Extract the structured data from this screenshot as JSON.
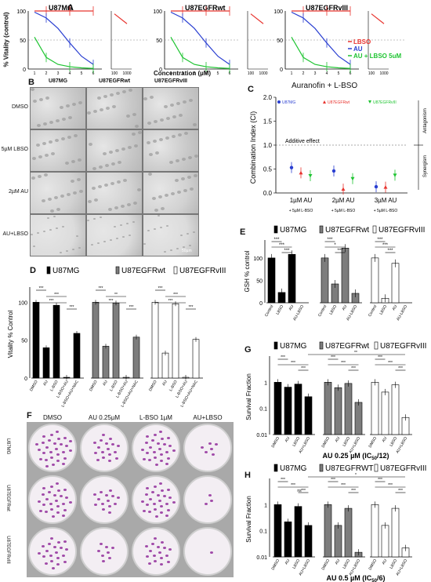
{
  "panels": {
    "A": {
      "label": "A",
      "ylabel": "% Vitality (control)",
      "xlabel": "Concentration (µM)",
      "titles": [
        "U87MG",
        "U87EGFRwt",
        "U87EGFRvIII"
      ],
      "legend": [
        "LBSO",
        "AU",
        "AU + LBSO 5uM"
      ],
      "yticks": [
        "100",
        "50",
        "0"
      ],
      "xticks_left": [
        "1",
        "2",
        "3",
        "4",
        "5",
        "6"
      ],
      "xticks_right": [
        "100",
        "1000"
      ],
      "colors": {
        "LBSO": "#e8342f",
        "AU": "#2a3fd1",
        "AU_LBSO": "#1ec431",
        "ref": "#888888"
      }
    },
    "B": {
      "label": "B",
      "columns": [
        "U87MG",
        "U87EGFRwt",
        "U87EGFRvIII"
      ],
      "rows": [
        "DMSO",
        "5µM LBSO",
        "2µM AU",
        "AU+LBSO"
      ],
      "scale": "50µm"
    },
    "C": {
      "label": "C",
      "title": "Auranofin + L-BSO",
      "ylabel": "Combination Index (CI)",
      "yticks": [
        "2.0",
        "1.5",
        "1.0",
        "0.5",
        "0.0"
      ],
      "legend": [
        "U87MG",
        "U87EGFRwt",
        "U87EGFRvIII"
      ],
      "additive": "Additive effect",
      "antagonism": "Antagonism",
      "synergism": "Synergism",
      "groups": [
        "1µM AU",
        "2µM AU",
        "3µM AU"
      ],
      "sublabels": [
        "+ 5µM L-BSO",
        "+ 5µM L-BSO",
        "+ 5µM L-BSO"
      ]
    },
    "D": {
      "label": "D",
      "ylabel": "Vitality % Control",
      "yticks": [
        "100",
        "50",
        "0"
      ],
      "legend": [
        "U87MG",
        "U87EGFRwt",
        "U87EGFRvIII"
      ],
      "categories": [
        "DMSO",
        "AU",
        "L-BSO",
        "L-BSO+AU",
        "L-BSO+AU+NAC"
      ],
      "sig": "***",
      "sig2": "**"
    },
    "E": {
      "label": "E",
      "ylabel": "GSH % control",
      "yticks": [
        "100",
        "50",
        "0"
      ],
      "legend": [
        "U87MG",
        "U87EGFRwt",
        "U87EGFRvIII"
      ],
      "categories": [
        "Control",
        "LBSO",
        "AU",
        "AU-LBSO"
      ],
      "sig": "***",
      "sig1": "*"
    },
    "F": {
      "label": "F",
      "columns": [
        "DMSO",
        "AU 0.25µM",
        "L-BSO 1µM",
        "AU+LBSO"
      ],
      "rows": [
        "U87MG",
        "U87EGFRwt",
        "U87EGFRvIII"
      ]
    },
    "G": {
      "label": "G",
      "ylabel": "Survival Fraction",
      "yticks": [
        "1",
        "0.1",
        "0.01"
      ],
      "legend": [
        "U87MG",
        "U87EGFRwt",
        "U87EGFRvIII"
      ],
      "categories": [
        "DMSO",
        "AU",
        "LBSO",
        "AU+LBSO"
      ],
      "caption": "AU 0.25 µM (IC",
      "caption_sub": "50",
      "caption_end": "/12)",
      "sig": "***",
      "sig2": "**"
    },
    "H": {
      "label": "H",
      "ylabel": "Survival Fraction",
      "yticks": [
        "1",
        "0.1",
        "0.01"
      ],
      "legend": [
        "U87MG",
        "U87EGFRWT",
        "U87EGFRvIII"
      ],
      "categories": [
        "DMSO",
        "AU",
        "LBSO",
        "AU+LBSO"
      ],
      "caption": "AU 0.5 µM (IC",
      "caption_sub": "50",
      "caption_end": "/6)",
      "sig": "***",
      "sig1": "*",
      "ns": "ns"
    }
  },
  "chart_data": [
    {
      "panel": "A",
      "type": "line",
      "subplots": [
        "U87MG",
        "U87EGFRwt",
        "U87EGFRvIII"
      ],
      "series": [
        {
          "name": "LBSO",
          "x": [
            1,
            2,
            3,
            4,
            5,
            6,
            100,
            1000
          ],
          "y": [
            100,
            100,
            100,
            100,
            100,
            100,
            95,
            78
          ]
        },
        {
          "name": "AU",
          "x": [
            1,
            2,
            3,
            4,
            5,
            6
          ],
          "y": [
            98,
            88,
            70,
            45,
            22,
            8
          ]
        },
        {
          "name": "AU + LBSO 5uM",
          "x": [
            1,
            2,
            3,
            4,
            5,
            6
          ],
          "y": [
            55,
            20,
            8,
            4,
            2,
            1
          ]
        }
      ],
      "ylim": [
        0,
        100
      ]
    },
    {
      "panel": "C",
      "type": "scatter",
      "groups": [
        "1µM AU",
        "2µM AU",
        "3µM AU"
      ],
      "series": [
        {
          "name": "U87MG",
          "values": [
            0.53,
            0.46,
            0.13
          ]
        },
        {
          "name": "U87EGFRwt",
          "values": [
            0.42,
            0.08,
            0.12
          ]
        },
        {
          "name": "U87EGFRvIII",
          "values": [
            0.36,
            0.3,
            0.37
          ]
        }
      ],
      "ylim": [
        0,
        2
      ]
    },
    {
      "panel": "D",
      "type": "bar",
      "categories": [
        "DMSO",
        "AU",
        "L-BSO",
        "L-BSO+AU",
        "L-BSO+AU+NAC"
      ],
      "series": [
        {
          "name": "U87MG",
          "values": [
            100,
            40,
            96,
            1,
            59
          ]
        },
        {
          "name": "U87EGFRwt",
          "values": [
            100,
            42,
            99,
            1,
            54
          ]
        },
        {
          "name": "U87EGFRvIII",
          "values": [
            100,
            33,
            98,
            1,
            51
          ]
        }
      ],
      "ylim": [
        0,
        120
      ]
    },
    {
      "panel": "E",
      "type": "bar",
      "categories": [
        "Control",
        "LBSO",
        "AU",
        "AU-LBSO"
      ],
      "series": [
        {
          "name": "U87MG",
          "values": [
            100,
            23,
            108,
            0
          ]
        },
        {
          "name": "U87EGFRwt",
          "values": [
            100,
            42,
            122,
            21
          ]
        },
        {
          "name": "U87EGFRvIII",
          "values": [
            100,
            10,
            88,
            0
          ]
        }
      ],
      "ylim": [
        0,
        140
      ]
    },
    {
      "panel": "G",
      "type": "bar",
      "categories": [
        "DMSO",
        "AU",
        "LBSO",
        "AU+LBSO"
      ],
      "series": [
        {
          "name": "U87MG",
          "values": [
            1,
            0.65,
            0.85,
            0.28
          ]
        },
        {
          "name": "U87EGFRwt",
          "values": [
            1,
            0.62,
            0.9,
            0.17
          ]
        },
        {
          "name": "U87EGFRvIII",
          "values": [
            1,
            0.42,
            0.8,
            0.045
          ]
        }
      ],
      "ylim": [
        0.01,
        10
      ],
      "scale": "log"
    },
    {
      "panel": "H",
      "type": "bar",
      "categories": [
        "DMSO",
        "AU",
        "LBSO",
        "AU+LBSO"
      ],
      "series": [
        {
          "name": "U87MG",
          "values": [
            1,
            0.22,
            0.85,
            0.16
          ]
        },
        {
          "name": "U87EGFRwt",
          "values": [
            1,
            0.16,
            0.72,
            0.015
          ]
        },
        {
          "name": "U87EGFRvIII",
          "values": [
            1,
            0.16,
            0.72,
            0.022
          ]
        }
      ],
      "ylim": [
        0.01,
        10
      ],
      "scale": "log"
    }
  ]
}
